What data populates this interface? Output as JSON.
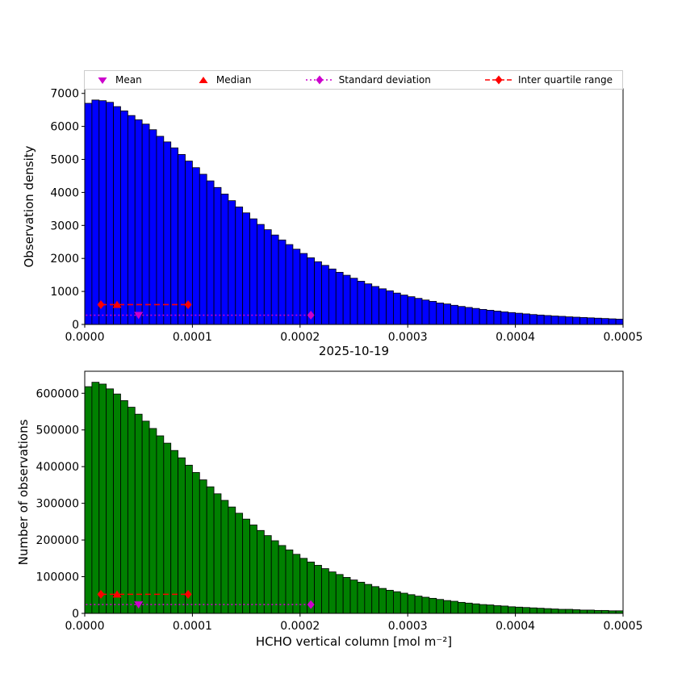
{
  "figure": {
    "date_title": "2025-10-19",
    "xlabel": "HCHO vertical column [mol m⁻²]",
    "background": "#ffffff"
  },
  "colors": {
    "blue": "#0000ff",
    "green": "#008000",
    "red": "#ff0000",
    "magenta": "#cc00cc",
    "black": "#000000",
    "legend_border": "#cccccc"
  },
  "legend": {
    "items": [
      {
        "label": "Mean",
        "marker": "triangle-down",
        "color": "magenta"
      },
      {
        "label": "Median",
        "marker": "triangle-up",
        "color": "red"
      },
      {
        "label": "Standard deviation",
        "marker": "dotted-line-diamond",
        "color": "magenta"
      },
      {
        "label": "Inter quartile range",
        "marker": "dashed-line-diamond",
        "color": "red"
      }
    ]
  },
  "chart_data": [
    {
      "type": "bar",
      "title": "",
      "ylabel": "Observation density",
      "bar_color_key": "blue",
      "xlim": [
        0,
        0.0005
      ],
      "ylim": [
        0,
        7140
      ],
      "bin_width": 6.6667e-06,
      "xticks": [
        0,
        0.0001,
        0.0002,
        0.0003,
        0.0004,
        0.0005
      ],
      "xtick_labels": [
        "0.0000",
        "0.0001",
        "0.0002",
        "0.0003",
        "0.0004",
        "0.0005"
      ],
      "yticks": [
        0,
        1000,
        2000,
        3000,
        4000,
        5000,
        6000,
        7000
      ],
      "ytick_labels": [
        "0",
        "1000",
        "2000",
        "3000",
        "4000",
        "5000",
        "6000",
        "7000"
      ],
      "values": [
        6700,
        6800,
        6780,
        6730,
        6600,
        6470,
        6330,
        6200,
        6070,
        5900,
        5700,
        5530,
        5350,
        5150,
        4950,
        4750,
        4550,
        4350,
        4150,
        3950,
        3750,
        3560,
        3380,
        3200,
        3030,
        2870,
        2710,
        2560,
        2420,
        2280,
        2150,
        2020,
        1900,
        1790,
        1680,
        1580,
        1490,
        1400,
        1310,
        1230,
        1150,
        1080,
        1020,
        950,
        890,
        840,
        790,
        740,
        700,
        650,
        620,
        580,
        545,
        515,
        485,
        455,
        430,
        405,
        380,
        360,
        340,
        320,
        300,
        285,
        270,
        255,
        245,
        230,
        220,
        210,
        200,
        190,
        180,
        170,
        160
      ],
      "stats": {
        "mean_x": 5e-05,
        "median_x": 3e-05,
        "iqr": [
          1.5e-05,
          9.6e-05
        ],
        "std_span": [
          1e-06,
          0.00021
        ],
        "mean_line_y": 280,
        "iqr_line_y": 600
      }
    },
    {
      "type": "bar",
      "title": "",
      "ylabel": "Number of observations",
      "bar_color_key": "green",
      "xlim": [
        0,
        0.0005
      ],
      "ylim": [
        0,
        660000
      ],
      "bin_width": 6.6667e-06,
      "xticks": [
        0,
        0.0001,
        0.0002,
        0.0003,
        0.0004,
        0.0005
      ],
      "xtick_labels": [
        "0.0000",
        "0.0001",
        "0.0002",
        "0.0003",
        "0.0004",
        "0.0005"
      ],
      "yticks": [
        0,
        100000,
        200000,
        300000,
        400000,
        500000,
        600000
      ],
      "ytick_labels": [
        "0",
        "100000",
        "200000",
        "300000",
        "400000",
        "500000",
        "600000"
      ],
      "values": [
        618000,
        630000,
        625000,
        612000,
        598000,
        580000,
        562000,
        543000,
        524000,
        504000,
        484000,
        464000,
        444000,
        424000,
        404000,
        384000,
        364000,
        345000,
        326000,
        308000,
        290000,
        273000,
        257000,
        241000,
        226000,
        212000,
        198000,
        185000,
        173000,
        161000,
        150000,
        140000,
        131000,
        122000,
        113000,
        106000,
        98000,
        91000,
        85000,
        79000,
        73000,
        68000,
        63000,
        59000,
        55000,
        51000,
        47000,
        44000,
        41000,
        38000,
        35000,
        33000,
        30000,
        28000,
        26000,
        24000,
        23000,
        21000,
        20000,
        18000,
        17000,
        16000,
        15000,
        14000,
        13000,
        12000,
        11000,
        11000,
        10000,
        9000,
        9000,
        8000,
        8000,
        7000,
        7000
      ],
      "stats": {
        "mean_x": 5e-05,
        "median_x": 3e-05,
        "iqr": [
          1.5e-05,
          9.6e-05
        ],
        "std_span": [
          1e-06,
          0.00021
        ],
        "mean_line_y": 24000,
        "iqr_line_y": 52000
      }
    }
  ]
}
